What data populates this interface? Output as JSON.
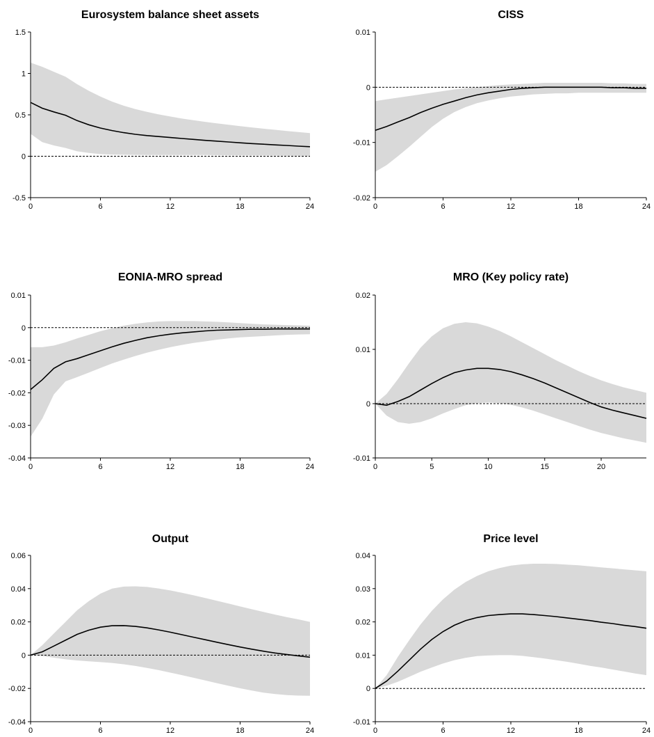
{
  "colors": {
    "band": "#d9d9d9",
    "line": "#000000",
    "zero_line": "#000000",
    "axis": "#000000"
  },
  "chart_data": [
    {
      "type": "area",
      "title": "Eurosystem balance sheet assets",
      "xlabel": "",
      "ylabel": "",
      "xlim": [
        0,
        24
      ],
      "ylim": [
        -0.5,
        1.5
      ],
      "xticks": [
        "0",
        "6",
        "12",
        "18",
        "24"
      ],
      "yticks": [
        "-0.5",
        "0",
        "0.5",
        "1",
        "1.5"
      ],
      "zero_line": true,
      "grid": false,
      "x": [
        0,
        1,
        2,
        3,
        4,
        5,
        6,
        7,
        8,
        9,
        10,
        11,
        12,
        13,
        14,
        15,
        16,
        17,
        18,
        19,
        20,
        21,
        22,
        23,
        24
      ],
      "median": [
        0.65,
        0.58,
        0.535,
        0.495,
        0.43,
        0.38,
        0.34,
        0.31,
        0.285,
        0.265,
        0.25,
        0.238,
        0.226,
        0.214,
        0.203,
        0.192,
        0.182,
        0.172,
        0.162,
        0.153,
        0.145,
        0.137,
        0.13,
        0.122,
        0.115
      ],
      "upper": [
        1.13,
        1.08,
        1.02,
        0.96,
        0.87,
        0.79,
        0.72,
        0.66,
        0.61,
        0.57,
        0.535,
        0.505,
        0.48,
        0.455,
        0.435,
        0.415,
        0.397,
        0.38,
        0.364,
        0.348,
        0.333,
        0.319,
        0.305,
        0.292,
        0.28
      ],
      "lower": [
        0.27,
        0.17,
        0.13,
        0.1,
        0.06,
        0.04,
        0.025,
        0.02,
        0.018,
        0.016,
        0.015,
        0.015,
        0.015,
        0.015,
        0.015,
        0.014,
        0.013,
        0.012,
        0.011,
        0.01,
        0.009,
        0.008,
        0.007,
        0.006,
        0.005
      ]
    },
    {
      "type": "area",
      "title": "CISS",
      "xlabel": "",
      "ylabel": "",
      "xlim": [
        0,
        24
      ],
      "ylim": [
        -0.02,
        0.01
      ],
      "xticks": [
        "0",
        "6",
        "12",
        "18",
        "24"
      ],
      "yticks": [
        "-0.02",
        "-0.01",
        "0",
        "0.01"
      ],
      "zero_line": true,
      "grid": false,
      "x": [
        0,
        1,
        2,
        3,
        4,
        5,
        6,
        7,
        8,
        9,
        10,
        11,
        12,
        13,
        14,
        15,
        16,
        17,
        18,
        19,
        20,
        21,
        22,
        23,
        24
      ],
      "median": [
        -0.0078,
        -0.0071,
        -0.0063,
        -0.0055,
        -0.0046,
        -0.0038,
        -0.0031,
        -0.0025,
        -0.0019,
        -0.0014,
        -0.001,
        -0.0007,
        -0.0004,
        -0.0002,
        -0.0001,
        0.0,
        0.0,
        0.0,
        0.0,
        0.0,
        0.0,
        -0.0001,
        -0.0001,
        -0.0002,
        -0.0002
      ],
      "upper": [
        -0.0025,
        -0.0022,
        -0.0019,
        -0.0016,
        -0.0013,
        -0.001,
        -0.0007,
        -0.0004,
        -0.0002,
        0.0,
        0.0002,
        0.0004,
        0.0005,
        0.0006,
        0.0007,
        0.0008,
        0.0008,
        0.0008,
        0.0008,
        0.0008,
        0.0008,
        0.0007,
        0.0007,
        0.0006,
        0.0006
      ],
      "lower": [
        -0.0153,
        -0.0141,
        -0.0125,
        -0.0108,
        -0.009,
        -0.0072,
        -0.0057,
        -0.0045,
        -0.0036,
        -0.0029,
        -0.0024,
        -0.002,
        -0.0017,
        -0.0015,
        -0.0013,
        -0.0012,
        -0.0011,
        -0.0011,
        -0.001,
        -0.001,
        -0.001,
        -0.001,
        -0.001,
        -0.001,
        -0.001
      ]
    },
    {
      "type": "area",
      "title": "EONIA-MRO spread",
      "xlabel": "",
      "ylabel": "",
      "xlim": [
        0,
        24
      ],
      "ylim": [
        -0.04,
        0.01
      ],
      "xticks": [
        "0",
        "6",
        "12",
        "18",
        "24"
      ],
      "yticks": [
        "-0.04",
        "-0.03",
        "-0.02",
        "-0.01",
        "0",
        "0.01"
      ],
      "zero_line": true,
      "grid": false,
      "x": [
        0,
        1,
        2,
        3,
        4,
        5,
        6,
        7,
        8,
        9,
        10,
        11,
        12,
        13,
        14,
        15,
        16,
        17,
        18,
        19,
        20,
        21,
        22,
        23,
        24
      ],
      "median": [
        -0.019,
        -0.016,
        -0.0125,
        -0.0105,
        -0.0095,
        -0.0083,
        -0.0071,
        -0.0059,
        -0.0048,
        -0.0039,
        -0.0031,
        -0.0025,
        -0.002,
        -0.0016,
        -0.0013,
        -0.001,
        -0.0008,
        -0.0007,
        -0.0006,
        -0.0005,
        -0.0005,
        -0.0004,
        -0.0004,
        -0.0004,
        -0.0004
      ],
      "upper": [
        -0.006,
        -0.006,
        -0.0055,
        -0.0045,
        -0.0033,
        -0.0022,
        -0.0011,
        -0.0002,
        0.0006,
        0.0012,
        0.0016,
        0.0019,
        0.002,
        0.002,
        0.002,
        0.0019,
        0.0018,
        0.0016,
        0.0014,
        0.0012,
        0.001,
        0.0009,
        0.0008,
        0.0007,
        0.0006
      ],
      "lower": [
        -0.0335,
        -0.028,
        -0.0205,
        -0.0165,
        -0.0152,
        -0.0138,
        -0.0124,
        -0.011,
        -0.0098,
        -0.0087,
        -0.0077,
        -0.0068,
        -0.006,
        -0.0053,
        -0.0047,
        -0.0042,
        -0.0037,
        -0.0033,
        -0.003,
        -0.0028,
        -0.0026,
        -0.0024,
        -0.0022,
        -0.0021,
        -0.002
      ]
    },
    {
      "type": "area",
      "title": "MRO (Key policy rate)",
      "xlabel": "",
      "ylabel": "",
      "xlim": [
        0,
        24
      ],
      "ylim": [
        -0.01,
        0.02
      ],
      "xticks": [
        "0",
        "5",
        "10",
        "15",
        "20"
      ],
      "yticks": [
        "-0.01",
        "0",
        "0.01",
        "0.02"
      ],
      "zero_line": true,
      "grid": false,
      "x": [
        0,
        1,
        2,
        3,
        4,
        5,
        6,
        7,
        8,
        9,
        10,
        11,
        12,
        13,
        14,
        15,
        16,
        17,
        18,
        19,
        20,
        21,
        22,
        23,
        24
      ],
      "median": [
        0.0,
        -0.0003,
        0.0004,
        0.0013,
        0.0025,
        0.0037,
        0.0048,
        0.0057,
        0.0062,
        0.0065,
        0.0065,
        0.0063,
        0.0059,
        0.0053,
        0.0046,
        0.0038,
        0.0029,
        0.002,
        0.0011,
        0.0002,
        -0.0006,
        -0.0012,
        -0.0017,
        -0.0022,
        -0.0027
      ],
      "upper": [
        0.0,
        0.0018,
        0.0045,
        0.0075,
        0.0103,
        0.0124,
        0.0139,
        0.0147,
        0.015,
        0.0148,
        0.0142,
        0.0134,
        0.0124,
        0.0113,
        0.0102,
        0.0091,
        0.008,
        0.007,
        0.006,
        0.0051,
        0.0043,
        0.0036,
        0.003,
        0.0025,
        0.002
      ],
      "lower": [
        0.0,
        -0.0022,
        -0.0034,
        -0.0037,
        -0.0034,
        -0.0027,
        -0.0018,
        -0.001,
        -0.0003,
        0.0001,
        0.0002,
        0.0001,
        -0.0002,
        -0.0007,
        -0.0013,
        -0.002,
        -0.0027,
        -0.0034,
        -0.0041,
        -0.0048,
        -0.0054,
        -0.0059,
        -0.0064,
        -0.0068,
        -0.0072
      ]
    },
    {
      "type": "area",
      "title": "Output",
      "xlabel": "",
      "ylabel": "",
      "xlim": [
        0,
        24
      ],
      "ylim": [
        -0.04,
        0.06
      ],
      "xticks": [
        "0",
        "6",
        "12",
        "18",
        "24"
      ],
      "yticks": [
        "-0.04",
        "-0.02",
        "0",
        "0.02",
        "0.04",
        "0.06"
      ],
      "zero_line": true,
      "grid": false,
      "x": [
        0,
        1,
        2,
        3,
        4,
        5,
        6,
        7,
        8,
        9,
        10,
        11,
        12,
        13,
        14,
        15,
        16,
        17,
        18,
        19,
        20,
        21,
        22,
        23,
        24
      ],
      "median": [
        0.0,
        0.002,
        0.0055,
        0.009,
        0.0125,
        0.015,
        0.0168,
        0.0177,
        0.0178,
        0.0173,
        0.0164,
        0.0152,
        0.0138,
        0.0123,
        0.0108,
        0.0093,
        0.0078,
        0.0063,
        0.0049,
        0.0036,
        0.0024,
        0.0013,
        0.0004,
        -0.0004,
        -0.0012
      ],
      "upper": [
        0.0,
        0.006,
        0.013,
        0.02,
        0.027,
        0.0325,
        0.037,
        0.04,
        0.0412,
        0.0414,
        0.041,
        0.0401,
        0.0389,
        0.0375,
        0.036,
        0.0344,
        0.0327,
        0.031,
        0.0293,
        0.0276,
        0.026,
        0.0244,
        0.0229,
        0.0215,
        0.02
      ],
      "lower": [
        0.0,
        -0.0005,
        -0.0015,
        -0.0025,
        -0.0032,
        -0.0037,
        -0.0042,
        -0.0047,
        -0.0055,
        -0.0065,
        -0.0077,
        -0.009,
        -0.0105,
        -0.012,
        -0.0136,
        -0.0152,
        -0.0168,
        -0.0184,
        -0.0199,
        -0.0213,
        -0.0225,
        -0.0234,
        -0.024,
        -0.0243,
        -0.0244
      ]
    },
    {
      "type": "area",
      "title": "Price level",
      "xlabel": "",
      "ylabel": "",
      "xlim": [
        0,
        24
      ],
      "ylim": [
        -0.01,
        0.04
      ],
      "xticks": [
        "0",
        "6",
        "12",
        "18",
        "24"
      ],
      "yticks": [
        "-0.01",
        "0",
        "0.01",
        "0.02",
        "0.03",
        "0.04"
      ],
      "zero_line": true,
      "grid": false,
      "x": [
        0,
        1,
        2,
        3,
        4,
        5,
        6,
        7,
        8,
        9,
        10,
        11,
        12,
        13,
        14,
        15,
        16,
        17,
        18,
        19,
        20,
        21,
        22,
        23,
        24
      ],
      "median": [
        0.0,
        0.0022,
        0.0052,
        0.0085,
        0.0118,
        0.0147,
        0.0171,
        0.019,
        0.0204,
        0.0213,
        0.0219,
        0.0222,
        0.0224,
        0.0224,
        0.0222,
        0.0219,
        0.0216,
        0.0212,
        0.0208,
        0.0204,
        0.0199,
        0.0195,
        0.019,
        0.0186,
        0.0181
      ],
      "upper": [
        0.0,
        0.004,
        0.0095,
        0.0145,
        0.0192,
        0.0233,
        0.0268,
        0.0297,
        0.032,
        0.0338,
        0.0352,
        0.0362,
        0.0369,
        0.0373,
        0.0375,
        0.0375,
        0.0374,
        0.0372,
        0.037,
        0.0367,
        0.0364,
        0.0361,
        0.0358,
        0.0355,
        0.0352
      ],
      "lower": [
        0.0,
        0.0008,
        0.002,
        0.0035,
        0.005,
        0.0063,
        0.0075,
        0.0085,
        0.0092,
        0.0097,
        0.0099,
        0.01,
        0.01,
        0.0098,
        0.0094,
        0.009,
        0.0085,
        0.008,
        0.0074,
        0.0068,
        0.0063,
        0.0057,
        0.0051,
        0.0045,
        0.004
      ]
    }
  ]
}
